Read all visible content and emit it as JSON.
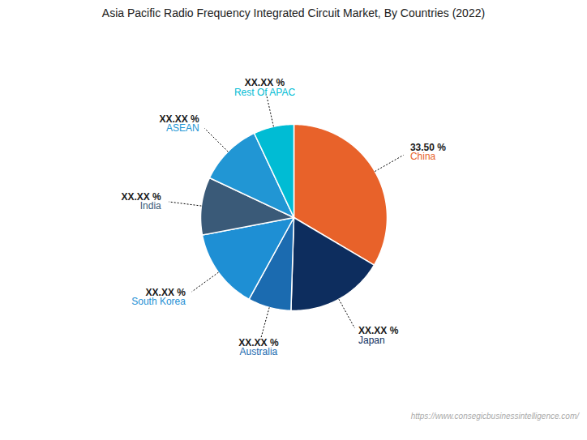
{
  "chart_data": {
    "type": "pie",
    "title": "Asia Pacific Radio Frequency Integrated Circuit Market, By Countries (2022)",
    "categories": [
      "China",
      "Japan",
      "Australia",
      "South Korea",
      "India",
      "ASEAN",
      "Rest Of APAC"
    ],
    "values": [
      33.5,
      17.0,
      7.5,
      14.0,
      10.0,
      11.0,
      7.0
    ],
    "value_labels": [
      "33.50 %",
      "XX.XX %",
      "XX.XX %",
      "XX.XX %",
      "XX.XX %",
      "XX.XX %",
      "XX.XX %"
    ],
    "colors": [
      "#E8622A",
      "#0D2D5E",
      "#1B6BB0",
      "#1E8FD4",
      "#3A5A78",
      "#2196D4",
      "#00BCD4"
    ],
    "data_labels": true,
    "annotations": [
      "https://www.consegicbusinessintelligence.com/"
    ]
  }
}
